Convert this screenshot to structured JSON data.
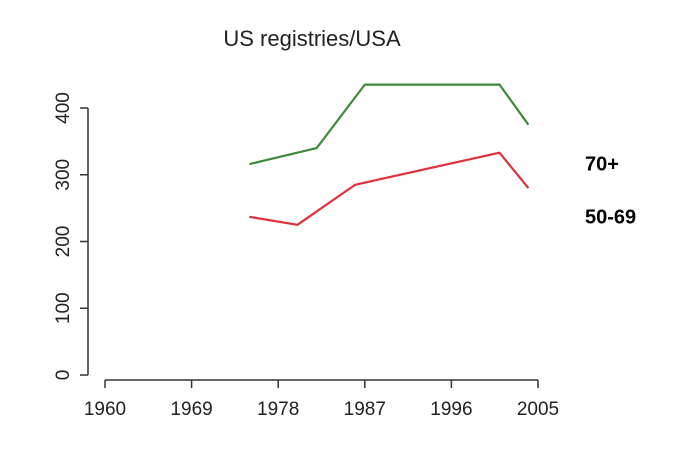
{
  "chart_data": {
    "type": "line",
    "title": "US registries/USA",
    "xlim": [
      1960,
      2005
    ],
    "xticks": [
      1960,
      1969,
      1978,
      1987,
      1996,
      2005
    ],
    "ylim": [
      0,
      400
    ],
    "yticks": [
      0,
      100,
      200,
      300,
      400
    ],
    "series": [
      {
        "name": "70+",
        "color": "#3d8a3d",
        "x": [
          1975,
          1982,
          1987,
          2001,
          2004
        ],
        "values": [
          316,
          340,
          435,
          435,
          375
        ]
      },
      {
        "name": "50-69",
        "color": "#e0303c",
        "x": [
          1975,
          1980,
          1986,
          2001,
          2004
        ],
        "values": [
          237,
          225,
          285,
          333,
          280
        ]
      }
    ]
  }
}
